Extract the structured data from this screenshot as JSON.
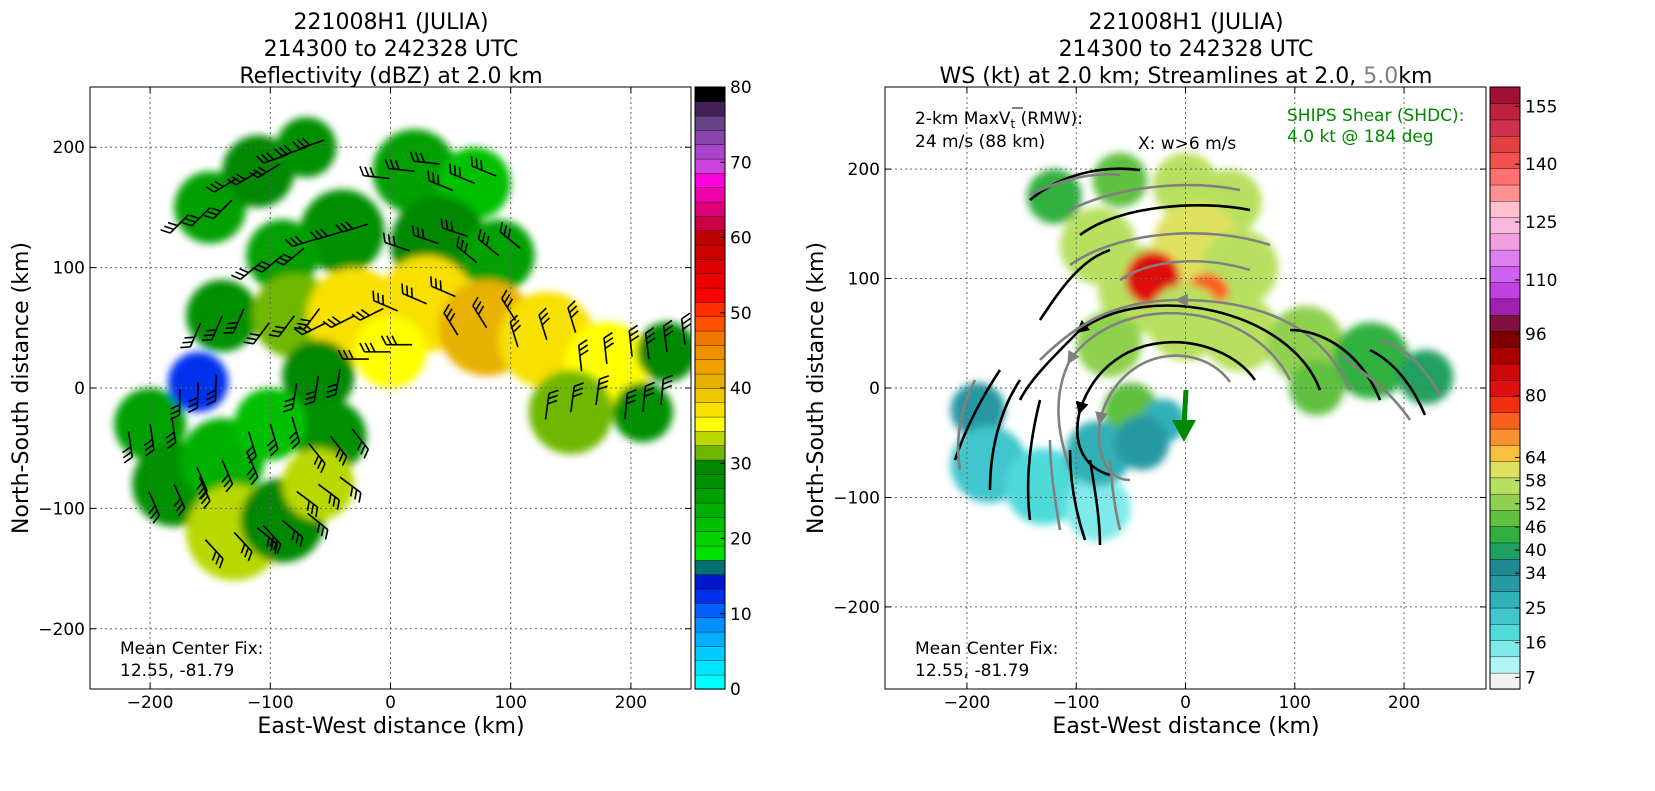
{
  "chart_data": [
    {
      "type": "heatmap",
      "title_lines": [
        "221008H1 (JULIA)",
        "214300 to 242328 UTC",
        "Reflectivity (dBZ) at 2.0 km"
      ],
      "xlabel": "East-West distance (km)",
      "ylabel": "North-South distance (km)",
      "xlim": [
        -250,
        250
      ],
      "ylim": [
        -250,
        250
      ],
      "xticks": [
        -200,
        -100,
        0,
        100,
        200
      ],
      "xtick_labels": [
        "−200",
        "−100",
        "0",
        "100",
        "200"
      ],
      "yticks": [
        -200,
        -100,
        0,
        100,
        200
      ],
      "ytick_labels": [
        "−200",
        "−100",
        "0",
        "100",
        "200"
      ],
      "grid": true,
      "annotations": [
        "Mean Center Fix:",
        "12.55, -81.79"
      ],
      "colorbar": {
        "range": [
          0,
          80
        ],
        "ticks": [
          0,
          10,
          20,
          30,
          40,
          50,
          60,
          70,
          80
        ],
        "colors": [
          "#00ffff",
          "#00e6ff",
          "#00ccff",
          "#00b0ff",
          "#0090ff",
          "#0060ff",
          "#0030ee",
          "#0018cc",
          "#007070",
          "#00e000",
          "#00d000",
          "#00c000",
          "#00b000",
          "#00a000",
          "#009000",
          "#008800",
          "#70b800",
          "#b8d800",
          "#ffff00",
          "#f8e000",
          "#f0c800",
          "#e8b000",
          "#f0a000",
          "#f09000",
          "#f07800",
          "#ff5000",
          "#ff3000",
          "#ff0000",
          "#ee0000",
          "#dd0000",
          "#cc0000",
          "#c00000",
          "#cc0044",
          "#dd0077",
          "#ee00aa",
          "#ff00dd",
          "#cc44dd",
          "#aa44cc",
          "#8844aa",
          "#664488",
          "#442255",
          "#000000"
        ]
      },
      "series": [
        {
          "name": "reflectivity_blobs",
          "points": [
            {
              "x": -150,
              "y": 150,
              "r": 30,
              "v": 25
            },
            {
              "x": -110,
              "y": 180,
              "r": 30,
              "v": 30
            },
            {
              "x": -70,
              "y": 200,
              "r": 25,
              "v": 28
            },
            {
              "x": 20,
              "y": 180,
              "r": 35,
              "v": 25
            },
            {
              "x": 70,
              "y": 170,
              "r": 30,
              "v": 22
            },
            {
              "x": 40,
              "y": 120,
              "r": 40,
              "v": 30
            },
            {
              "x": 90,
              "y": 110,
              "r": 30,
              "v": 25
            },
            {
              "x": -40,
              "y": 130,
              "r": 35,
              "v": 28
            },
            {
              "x": -90,
              "y": 110,
              "r": 30,
              "v": 25
            },
            {
              "x": -140,
              "y": 60,
              "r": 30,
              "v": 27
            },
            {
              "x": -80,
              "y": 60,
              "r": 35,
              "v": 32
            },
            {
              "x": -30,
              "y": 60,
              "r": 40,
              "v": 38
            },
            {
              "x": 30,
              "y": 70,
              "r": 40,
              "v": 37
            },
            {
              "x": 80,
              "y": 50,
              "r": 40,
              "v": 40
            },
            {
              "x": 130,
              "y": 40,
              "r": 40,
              "v": 38
            },
            {
              "x": 180,
              "y": 20,
              "r": 35,
              "v": 36
            },
            {
              "x": 230,
              "y": 30,
              "r": 25,
              "v": 30
            },
            {
              "x": 150,
              "y": -20,
              "r": 35,
              "v": 32
            },
            {
              "x": 210,
              "y": -20,
              "r": 25,
              "v": 28
            },
            {
              "x": 0,
              "y": 30,
              "r": 30,
              "v": 35
            },
            {
              "x": -60,
              "y": 10,
              "r": 30,
              "v": 30
            },
            {
              "x": -50,
              "y": -40,
              "r": 30,
              "v": 28
            },
            {
              "x": -200,
              "y": -30,
              "r": 30,
              "v": 26
            },
            {
              "x": -180,
              "y": -80,
              "r": 35,
              "v": 28
            },
            {
              "x": -140,
              "y": -60,
              "r": 35,
              "v": 24
            },
            {
              "x": -130,
              "y": -120,
              "r": 40,
              "v": 33
            },
            {
              "x": -90,
              "y": -110,
              "r": 35,
              "v": 30
            },
            {
              "x": -60,
              "y": -80,
              "r": 30,
              "v": 34
            },
            {
              "x": -100,
              "y": -30,
              "r": 30,
              "v": 22
            },
            {
              "x": -160,
              "y": 5,
              "r": 25,
              "v": 12
            }
          ]
        }
      ]
    },
    {
      "type": "heatmap",
      "title_lines": [
        "221008H1 (JULIA)",
        "214300 to 242328 UTC"
      ],
      "title_line3_parts": [
        "WS (kt) at 2.0 km; Streamlines at 2.0, ",
        "5.0",
        "km"
      ],
      "xlabel": "East-West distance (km)",
      "ylabel": "North-South distance (km)",
      "xlim": [
        -275,
        275
      ],
      "ylim": [
        -275,
        275
      ],
      "xticks": [
        -200,
        -100,
        0,
        100,
        200
      ],
      "xtick_labels": [
        "−200",
        "−100",
        "0",
        "100",
        "200"
      ],
      "yticks": [
        -200,
        -100,
        0,
        100,
        200
      ],
      "ytick_labels": [
        "−200",
        "−100",
        "0",
        "100",
        "200"
      ],
      "grid": true,
      "annotations": {
        "maxv_line1_a": "2-km MaxV",
        "maxv_line1_b": "t",
        "maxv_line1_c": " (RMW):",
        "maxv_line2": "24 m/s (88 km)",
        "wmark": "X: w>6 m/s",
        "shear_line1": "SHIPS Shear (SHDC):",
        "shear_line2": "4.0 kt @ 184 deg",
        "center_line1": "Mean Center Fix:",
        "center_line2": "12.55, -81.79"
      },
      "shear_vector": {
        "speed_kt": 4.0,
        "direction_deg": 184
      },
      "colorbar": {
        "range": [
          4,
          160
        ],
        "ticks": [
          7,
          16,
          25,
          34,
          40,
          46,
          52,
          58,
          64,
          80,
          96,
          110,
          125,
          140,
          155
        ],
        "colors": [
          "#f0f0f0",
          "#b0f4f4",
          "#80eaea",
          "#50dada",
          "#40c6cc",
          "#30b0b8",
          "#2898a4",
          "#208890",
          "#20a060",
          "#30b040",
          "#60c040",
          "#90d050",
          "#b8e060",
          "#e0e060",
          "#f8c040",
          "#f89030",
          "#f86020",
          "#f03010",
          "#e01010",
          "#cc0808",
          "#aa0000",
          "#800000",
          "#801040",
          "#a020b0",
          "#c040e0",
          "#d060f0",
          "#e080f0",
          "#f0a0e0",
          "#f8b8e0",
          "#ffc0d0",
          "#ff9090",
          "#ff7070",
          "#f05050",
          "#e04040",
          "#d03050",
          "#c02040",
          "#a01030"
        ]
      },
      "series": [
        {
          "name": "windspeed_blobs",
          "points": [
            {
              "x": -120,
              "y": 175,
              "r": 25,
              "v": 42
            },
            {
              "x": -60,
              "y": 190,
              "r": 25,
              "v": 48
            },
            {
              "x": 0,
              "y": 185,
              "r": 30,
              "v": 55
            },
            {
              "x": 40,
              "y": 170,
              "r": 30,
              "v": 58
            },
            {
              "x": -80,
              "y": 130,
              "r": 35,
              "v": 58
            },
            {
              "x": -40,
              "y": 90,
              "r": 40,
              "v": 58
            },
            {
              "x": 10,
              "y": 130,
              "r": 40,
              "v": 62
            },
            {
              "x": 50,
              "y": 110,
              "r": 35,
              "v": 58
            },
            {
              "x": -30,
              "y": 100,
              "r": 25,
              "v": 80
            },
            {
              "x": 20,
              "y": 85,
              "r": 20,
              "v": 72
            },
            {
              "x": 0,
              "y": 60,
              "r": 35,
              "v": 58
            },
            {
              "x": -70,
              "y": 40,
              "r": 30,
              "v": 54
            },
            {
              "x": 50,
              "y": 50,
              "r": 35,
              "v": 56
            },
            {
              "x": 110,
              "y": 40,
              "r": 35,
              "v": 52
            },
            {
              "x": 170,
              "y": 25,
              "r": 35,
              "v": 44
            },
            {
              "x": 220,
              "y": 10,
              "r": 25,
              "v": 38
            },
            {
              "x": 120,
              "y": 0,
              "r": 25,
              "v": 48
            },
            {
              "x": -50,
              "y": -20,
              "r": 25,
              "v": 48
            },
            {
              "x": -20,
              "y": -30,
              "r": 20,
              "v": 28
            },
            {
              "x": -190,
              "y": -20,
              "r": 25,
              "v": 30
            },
            {
              "x": -180,
              "y": -70,
              "r": 35,
              "v": 25
            },
            {
              "x": -130,
              "y": -90,
              "r": 35,
              "v": 18
            },
            {
              "x": -80,
              "y": -110,
              "r": 30,
              "v": 14
            },
            {
              "x": -80,
              "y": -60,
              "r": 30,
              "v": 26
            },
            {
              "x": -40,
              "y": -50,
              "r": 25,
              "v": 32
            }
          ]
        }
      ]
    }
  ]
}
